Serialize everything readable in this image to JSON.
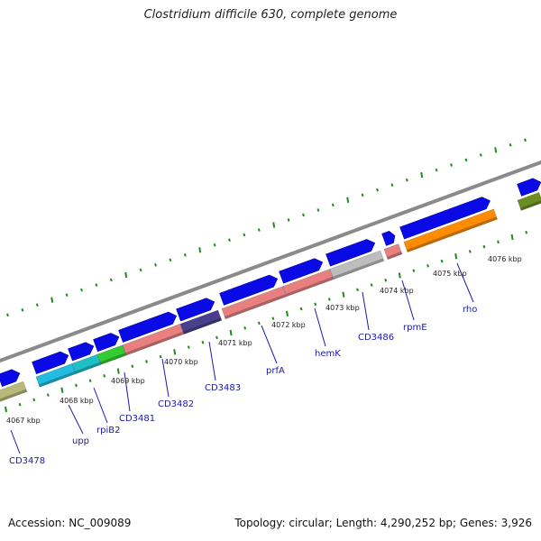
{
  "title": "Clostridium difficile 630, complete genome",
  "footer": {
    "accession": "Accession: NC_009089",
    "topology": "Topology: circular; Length: 4,290,252 bp; Genes: 3,926"
  },
  "colors": {
    "backbone": "#8a8a8a",
    "forward_arrow": "#0a0ae6",
    "tick": "#1f8a1f",
    "label": "#1a1aa6"
  },
  "kbp_labels": [
    "4067 kbp",
    "4068 kbp",
    "4069 kbp",
    "4070 kbp",
    "4071 kbp",
    "4072 kbp",
    "4073 kbp",
    "4074 kbp",
    "4075 kbp",
    "4076 kbp"
  ],
  "genes": [
    {
      "name": "CD3478",
      "color": "#b8b87a"
    },
    {
      "name": "upp",
      "color": "#22bce0"
    },
    {
      "name": "rpiB2",
      "color": "#1ec0c8"
    },
    {
      "name": "CD3481",
      "color": "#33cc33"
    },
    {
      "name": "CD3482",
      "color": "#e88080"
    },
    {
      "name": "CD3483",
      "color": "#4a3f8c"
    },
    {
      "name": "prfA",
      "color": "#e88080"
    },
    {
      "name": "hemK",
      "color": "#e88080"
    },
    {
      "name": "CD3486",
      "color": "#bdbdbd"
    },
    {
      "name": "rpmE",
      "color": "#e88080"
    },
    {
      "name": "rho",
      "color": "#ff8c00"
    },
    {
      "name": "",
      "color": "#6b8e23"
    }
  ]
}
